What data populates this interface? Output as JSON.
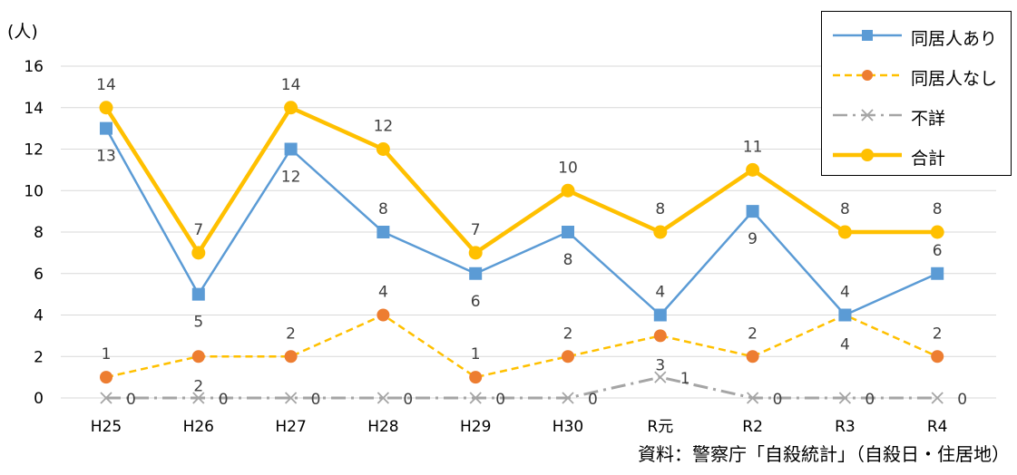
{
  "unit_label": "(人)",
  "source_note": "資料：警察庁「自殺統計」（自殺日・住居地）",
  "chart_data": {
    "type": "line",
    "categories": [
      "H25",
      "H26",
      "H27",
      "H28",
      "H29",
      "H30",
      "R元",
      "R2",
      "R3",
      "R4"
    ],
    "ylim": [
      0,
      16
    ],
    "yticks": [
      0,
      2,
      4,
      6,
      8,
      10,
      12,
      14,
      16
    ],
    "grid": true,
    "legend_position": "top-right",
    "series": [
      {
        "name": "同居人あり",
        "values": [
          13,
          5,
          12,
          8,
          6,
          8,
          4,
          9,
          4,
          6
        ],
        "color": "#5B9BD5",
        "marker": "square",
        "dash": "solid"
      },
      {
        "name": "同居人なし",
        "values": [
          1,
          2,
          2,
          4,
          1,
          2,
          3,
          2,
          4,
          2
        ],
        "color": "#ED7D31",
        "line_color": "#FFC000",
        "marker": "circle",
        "dash": "dashed"
      },
      {
        "name": "不詳",
        "values": [
          0,
          0,
          0,
          0,
          0,
          0,
          1,
          0,
          0,
          0
        ],
        "color": "#A5A5A5",
        "marker": "x",
        "dash": "dashdot"
      },
      {
        "name": "合計",
        "values": [
          14,
          7,
          14,
          12,
          7,
          10,
          8,
          11,
          8,
          8
        ],
        "color": "#FFC000",
        "marker": "circle",
        "dash": "solid"
      }
    ]
  }
}
